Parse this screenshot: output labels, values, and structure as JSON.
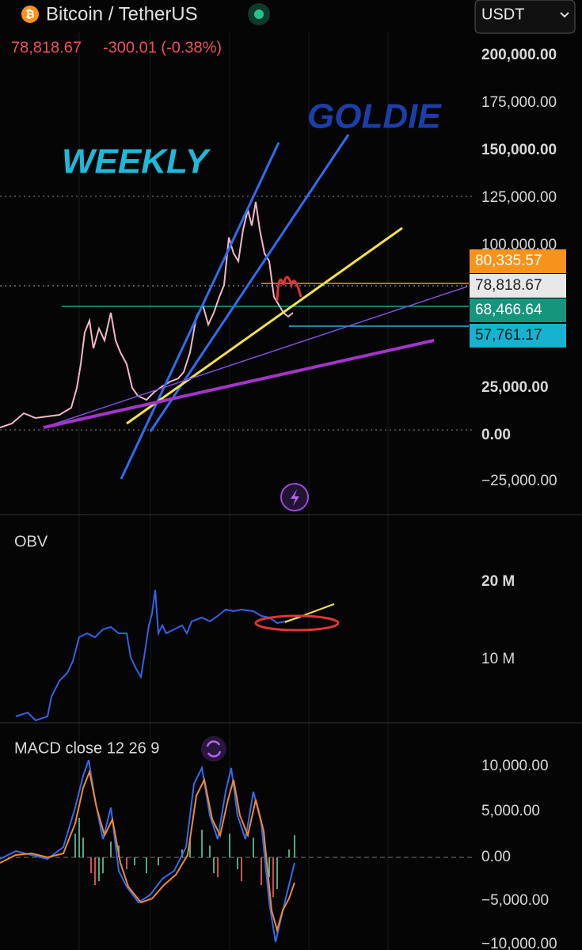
{
  "header": {
    "symbol": "Bitcoin / TetherUS",
    "quote_currency": "USDT",
    "last_price": "78,818.67",
    "change": "-300.01 (-0.38%)"
  },
  "price_panel": {
    "annotations": [
      "WEEKLY",
      "GOLDIE"
    ],
    "axis_labels": [
      "200,000.00",
      "175,000.00",
      "150,000.00",
      "125,000.00",
      "100,000.00",
      "25,000.00",
      "0.00",
      "−25,000.00"
    ],
    "price_tags": [
      "80,335.57",
      "78,818.67",
      "68,466.64",
      "57,761.17"
    ]
  },
  "obv_panel": {
    "title": "OBV",
    "axis_labels": [
      "20 M",
      "10 M"
    ]
  },
  "macd_panel": {
    "title": "MACD close 12 26 9",
    "axis_labels": [
      "10,000.00",
      "5,000.00",
      "0.00",
      "−5,000.00",
      "−10,000.00"
    ]
  }
}
